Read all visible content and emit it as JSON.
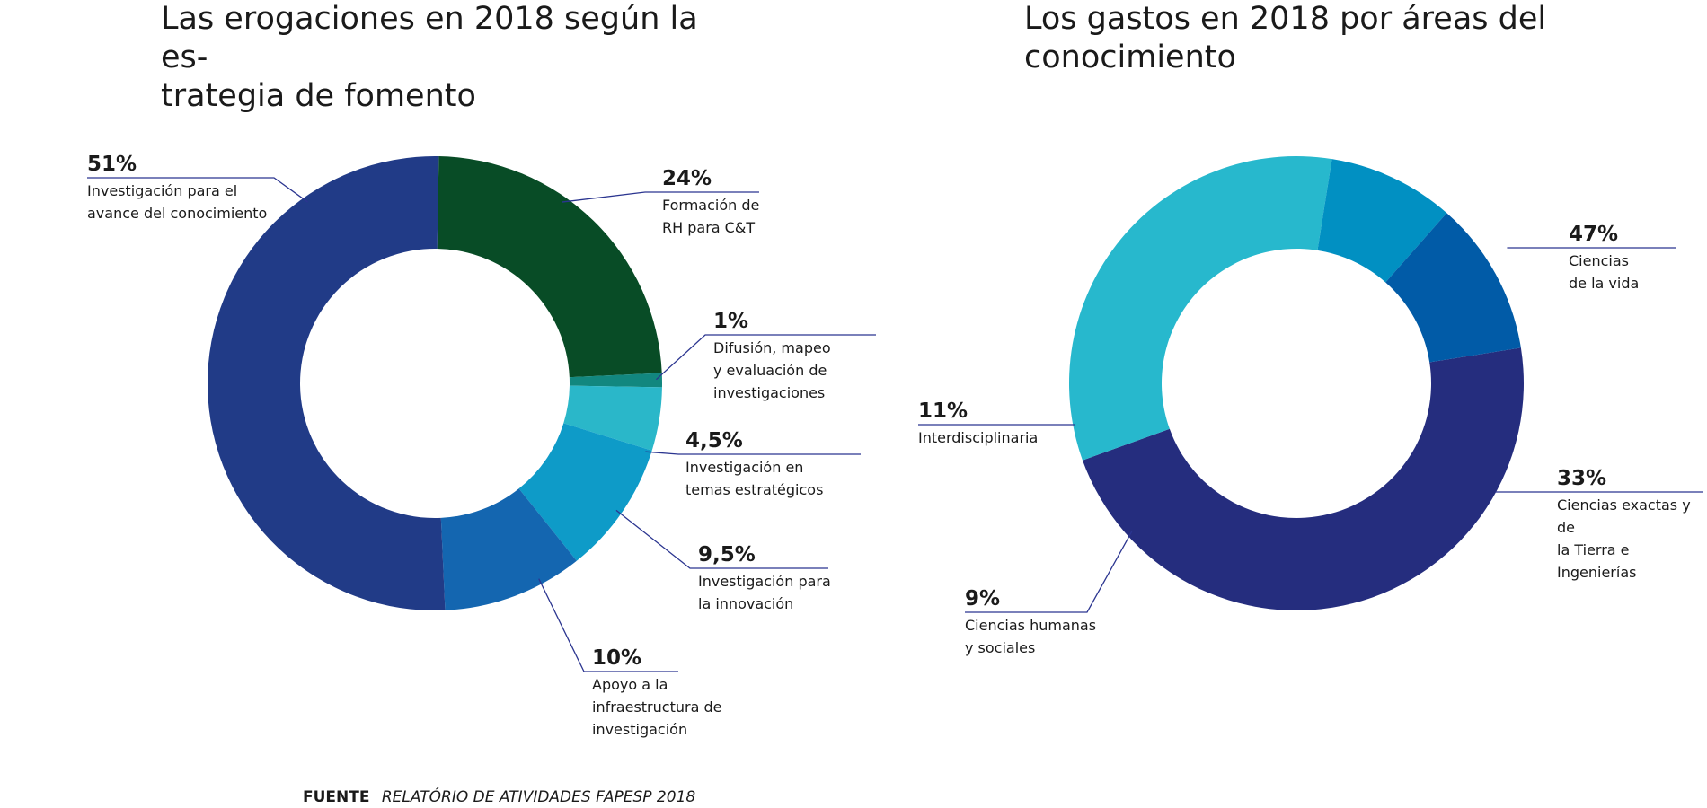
{
  "source": {
    "label": "FUENTE",
    "value": "RELATÓRIO DE ATIVIDADES FAPESP 2018"
  },
  "chart_data": [
    {
      "type": "pie",
      "variant": "donut",
      "title": "Las erogaciones en 2018 según la es-trategia de fomento",
      "title_lines": [
        "Las erogaciones en 2018 según la es-",
        "trategia de fomento"
      ],
      "slices": [
        {
          "label": "Formación de RH para C&T",
          "label_lines": [
            "Formación de",
            "RH para C&T"
          ],
          "value": 24,
          "value_label": "24%",
          "color": "#084c26"
        },
        {
          "label": "Difusión, mapeo y evaluación de investigaciones",
          "label_lines": [
            "Difusión, mapeo",
            "y evaluación de",
            "investigaciones"
          ],
          "value": 1,
          "value_label": "1%",
          "color": "#12877f"
        },
        {
          "label": "Investigación en temas estratégicos",
          "label_lines": [
            "Investigación en",
            "temas estratégicos"
          ],
          "value": 4.5,
          "value_label": "4,5%",
          "color": "#2ab7c9"
        },
        {
          "label": "Investigación para la innovación",
          "label_lines": [
            "Investigación para",
            "la innovación"
          ],
          "value": 9.5,
          "value_label": "9,5%",
          "color": "#0e9bc8"
        },
        {
          "label": "Apoyo a la infraestructura de investigación",
          "label_lines": [
            "Apoyo a la",
            "infraestructura de",
            "investigación"
          ],
          "value": 10,
          "value_label": "10%",
          "color": "#1466b0"
        },
        {
          "label": "Investigación para el avance del conocimiento",
          "label_lines": [
            "Investigación para el",
            "avance del conocimiento"
          ],
          "value": 51,
          "value_label": "51%",
          "color": "#213b87"
        }
      ]
    },
    {
      "type": "pie",
      "variant": "donut",
      "title": "Los gastos en 2018 por áreas del conocimiento",
      "title_lines": [
        "Los gastos en 2018 por áreas del",
        "conocimiento"
      ],
      "slices": [
        {
          "label": "Ciencias de la vida",
          "label_lines": [
            "Ciencias",
            "de la vida"
          ],
          "value": 47,
          "value_label": "47%",
          "color": "#252d7e"
        },
        {
          "label": "Ciencias exactas y de la Tierra e Ingenierías",
          "label_lines": [
            "Ciencias exactas y de",
            "la Tierra e Ingenierías"
          ],
          "value": 33,
          "value_label": "33%",
          "color": "#27b8cd"
        },
        {
          "label": "Ciencias humanas y sociales",
          "label_lines": [
            "Ciencias humanas",
            "y sociales"
          ],
          "value": 9,
          "value_label": "9%",
          "color": "#0190c2"
        },
        {
          "label": "Interdisciplinaria",
          "label_lines": [
            "Interdisciplinaria"
          ],
          "value": 11,
          "value_label": "11%",
          "color": "#015ba7"
        }
      ]
    }
  ]
}
